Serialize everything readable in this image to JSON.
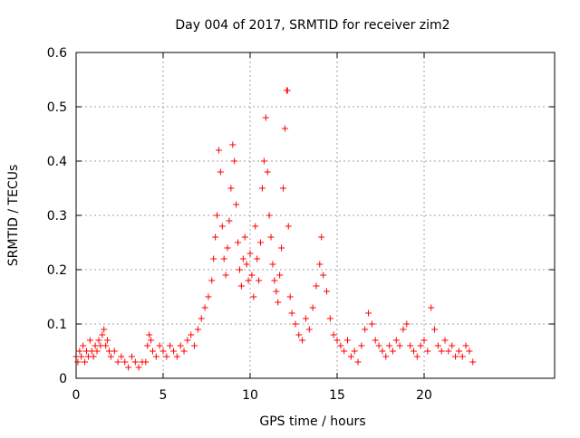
{
  "chart_data": {
    "type": "scatter",
    "title": "Day 004 of 2017, SRMTID for receiver zim2",
    "xlabel": "GPS time / hours",
    "ylabel": "SRMTID / TECUs",
    "xlim": [
      0,
      27.5
    ],
    "ylim": [
      0,
      0.6
    ],
    "xticks": [
      0,
      5,
      10,
      15,
      20
    ],
    "yticks": [
      0,
      0.1,
      0.2,
      0.3,
      0.4,
      0.5,
      0.6
    ],
    "xtick_labels": [
      "0",
      "5",
      "10",
      "15",
      "20"
    ],
    "ytick_labels": [
      "0",
      "0.1",
      "0.2",
      "0.3",
      "0.4",
      "0.5",
      "0.6"
    ],
    "grid": true,
    "marker": "plus",
    "color": "#ff0000",
    "series": [
      {
        "name": "zim2",
        "points": [
          [
            0.0,
            0.04
          ],
          [
            0.1,
            0.03
          ],
          [
            0.2,
            0.05
          ],
          [
            0.3,
            0.04
          ],
          [
            0.4,
            0.06
          ],
          [
            0.5,
            0.03
          ],
          [
            0.6,
            0.05
          ],
          [
            0.7,
            0.04
          ],
          [
            0.8,
            0.07
          ],
          [
            0.9,
            0.05
          ],
          [
            1.0,
            0.04
          ],
          [
            1.1,
            0.06
          ],
          [
            1.2,
            0.05
          ],
          [
            1.3,
            0.07
          ],
          [
            1.4,
            0.06
          ],
          [
            1.5,
            0.08
          ],
          [
            1.6,
            0.09
          ],
          [
            1.7,
            0.06
          ],
          [
            1.8,
            0.07
          ],
          [
            1.9,
            0.05
          ],
          [
            2.0,
            0.04
          ],
          [
            2.2,
            0.05
          ],
          [
            2.4,
            0.03
          ],
          [
            2.6,
            0.04
          ],
          [
            2.8,
            0.03
          ],
          [
            3.0,
            0.02
          ],
          [
            3.2,
            0.04
          ],
          [
            3.4,
            0.03
          ],
          [
            3.6,
            0.02
          ],
          [
            3.8,
            0.03
          ],
          [
            4.0,
            0.03
          ],
          [
            4.1,
            0.06
          ],
          [
            4.2,
            0.08
          ],
          [
            4.3,
            0.07
          ],
          [
            4.4,
            0.05
          ],
          [
            4.6,
            0.04
          ],
          [
            4.8,
            0.06
          ],
          [
            5.0,
            0.05
          ],
          [
            5.2,
            0.04
          ],
          [
            5.4,
            0.06
          ],
          [
            5.6,
            0.05
          ],
          [
            5.8,
            0.04
          ],
          [
            6.0,
            0.06
          ],
          [
            6.2,
            0.05
          ],
          [
            6.4,
            0.07
          ],
          [
            6.6,
            0.08
          ],
          [
            6.8,
            0.06
          ],
          [
            7.0,
            0.09
          ],
          [
            7.2,
            0.11
          ],
          [
            7.4,
            0.13
          ],
          [
            7.6,
            0.15
          ],
          [
            7.8,
            0.18
          ],
          [
            7.9,
            0.22
          ],
          [
            8.0,
            0.26
          ],
          [
            8.1,
            0.3
          ],
          [
            8.2,
            0.42
          ],
          [
            8.3,
            0.38
          ],
          [
            8.4,
            0.28
          ],
          [
            8.5,
            0.22
          ],
          [
            8.6,
            0.19
          ],
          [
            8.7,
            0.24
          ],
          [
            8.8,
            0.29
          ],
          [
            8.9,
            0.35
          ],
          [
            9.0,
            0.43
          ],
          [
            9.1,
            0.4
          ],
          [
            9.2,
            0.32
          ],
          [
            9.3,
            0.25
          ],
          [
            9.4,
            0.2
          ],
          [
            9.5,
            0.17
          ],
          [
            9.6,
            0.22
          ],
          [
            9.7,
            0.26
          ],
          [
            9.8,
            0.21
          ],
          [
            9.9,
            0.18
          ],
          [
            10.0,
            0.23
          ],
          [
            10.1,
            0.19
          ],
          [
            10.2,
            0.15
          ],
          [
            10.3,
            0.28
          ],
          [
            10.4,
            0.22
          ],
          [
            10.5,
            0.18
          ],
          [
            10.6,
            0.25
          ],
          [
            10.7,
            0.35
          ],
          [
            10.8,
            0.4
          ],
          [
            10.9,
            0.48
          ],
          [
            11.0,
            0.38
          ],
          [
            11.1,
            0.3
          ],
          [
            11.2,
            0.26
          ],
          [
            11.3,
            0.21
          ],
          [
            11.4,
            0.18
          ],
          [
            11.5,
            0.16
          ],
          [
            11.6,
            0.14
          ],
          [
            11.7,
            0.19
          ],
          [
            11.8,
            0.24
          ],
          [
            11.9,
            0.35
          ],
          [
            12.0,
            0.46
          ],
          [
            12.1,
            0.53
          ],
          [
            12.15,
            0.53
          ],
          [
            12.2,
            0.28
          ],
          [
            12.3,
            0.15
          ],
          [
            12.4,
            0.12
          ],
          [
            12.6,
            0.1
          ],
          [
            12.8,
            0.08
          ],
          [
            13.0,
            0.07
          ],
          [
            13.2,
            0.11
          ],
          [
            13.4,
            0.09
          ],
          [
            13.6,
            0.13
          ],
          [
            13.8,
            0.17
          ],
          [
            14.0,
            0.21
          ],
          [
            14.1,
            0.26
          ],
          [
            14.2,
            0.19
          ],
          [
            14.4,
            0.16
          ],
          [
            14.6,
            0.11
          ],
          [
            14.8,
            0.08
          ],
          [
            15.0,
            0.07
          ],
          [
            15.2,
            0.06
          ],
          [
            15.4,
            0.05
          ],
          [
            15.6,
            0.07
          ],
          [
            15.8,
            0.04
          ],
          [
            16.0,
            0.05
          ],
          [
            16.2,
            0.03
          ],
          [
            16.4,
            0.06
          ],
          [
            16.6,
            0.09
          ],
          [
            16.8,
            0.12
          ],
          [
            17.0,
            0.1
          ],
          [
            17.2,
            0.07
          ],
          [
            17.4,
            0.06
          ],
          [
            17.6,
            0.05
          ],
          [
            17.8,
            0.04
          ],
          [
            18.0,
            0.06
          ],
          [
            18.2,
            0.05
          ],
          [
            18.4,
            0.07
          ],
          [
            18.6,
            0.06
          ],
          [
            18.8,
            0.09
          ],
          [
            19.0,
            0.1
          ],
          [
            19.2,
            0.06
          ],
          [
            19.4,
            0.05
          ],
          [
            19.6,
            0.04
          ],
          [
            19.8,
            0.06
          ],
          [
            20.0,
            0.07
          ],
          [
            20.2,
            0.05
          ],
          [
            20.4,
            0.13
          ],
          [
            20.6,
            0.09
          ],
          [
            20.8,
            0.06
          ],
          [
            21.0,
            0.05
          ],
          [
            21.2,
            0.07
          ],
          [
            21.4,
            0.05
          ],
          [
            21.6,
            0.06
          ],
          [
            21.8,
            0.04
          ],
          [
            22.0,
            0.05
          ],
          [
            22.2,
            0.04
          ],
          [
            22.4,
            0.06
          ],
          [
            22.6,
            0.05
          ],
          [
            22.8,
            0.03
          ]
        ]
      }
    ]
  }
}
